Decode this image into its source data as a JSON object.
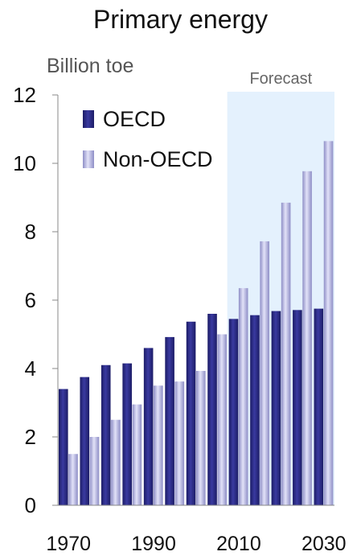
{
  "chart_data": {
    "type": "bar",
    "title": "Primary energy",
    "ylabel": "Billion toe",
    "xlabel": "",
    "categories": [
      "1970",
      "1975",
      "1980",
      "1985",
      "1990",
      "1995",
      "2000",
      "2005",
      "2010",
      "2015",
      "2020",
      "2025",
      "2030"
    ],
    "series": [
      {
        "name": "OECD",
        "values": [
          3.4,
          3.75,
          4.1,
          4.15,
          4.6,
          4.92,
          5.37,
          5.6,
          5.45,
          5.56,
          5.68,
          5.71,
          5.75
        ]
      },
      {
        "name": "Non-OECD",
        "values": [
          1.5,
          2.0,
          2.5,
          2.95,
          3.5,
          3.62,
          3.93,
          5.0,
          6.35,
          7.72,
          8.85,
          9.77,
          10.65
        ]
      }
    ],
    "ylim": [
      0,
      12
    ],
    "yticks": [
      "0",
      "2",
      "4",
      "6",
      "8",
      "10",
      "12"
    ],
    "xtick_labels": [
      "1970",
      "1990",
      "2010",
      "2030"
    ],
    "forecast": {
      "label": "Forecast",
      "from": "2010",
      "to": "2030"
    },
    "legend_position": "top-left",
    "grid": false,
    "colors": {
      "OECD": "#2a2a82",
      "Non-OECD": "#b4b4e2",
      "forecast_band": "#e4f1fd"
    }
  }
}
